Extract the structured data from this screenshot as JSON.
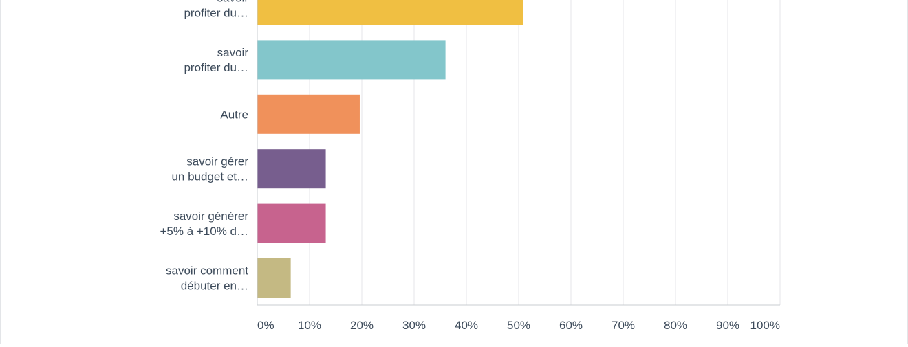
{
  "chart_data": {
    "type": "bar",
    "orientation": "horizontal",
    "categories": [
      [
        "savoir",
        "profiter du…"
      ],
      [
        "savoir",
        "profiter du…"
      ],
      [
        "Autre"
      ],
      [
        "savoir gérer",
        "un budget et…"
      ],
      [
        "savoir générer",
        "+5% à +10% d…"
      ],
      [
        "savoir comment",
        "débuter en…"
      ]
    ],
    "values": [
      50.8,
      36.0,
      19.6,
      13.1,
      13.1,
      6.4
    ],
    "colors": [
      "#f0bf42",
      "#83c6cb",
      "#f0915b",
      "#775e8e",
      "#c7638e",
      "#c4b983"
    ],
    "x_ticks": [
      "0%",
      "10%",
      "20%",
      "30%",
      "40%",
      "50%",
      "60%",
      "70%",
      "80%",
      "90%",
      "100%"
    ],
    "xlim": [
      0,
      100
    ],
    "grid": true
  }
}
